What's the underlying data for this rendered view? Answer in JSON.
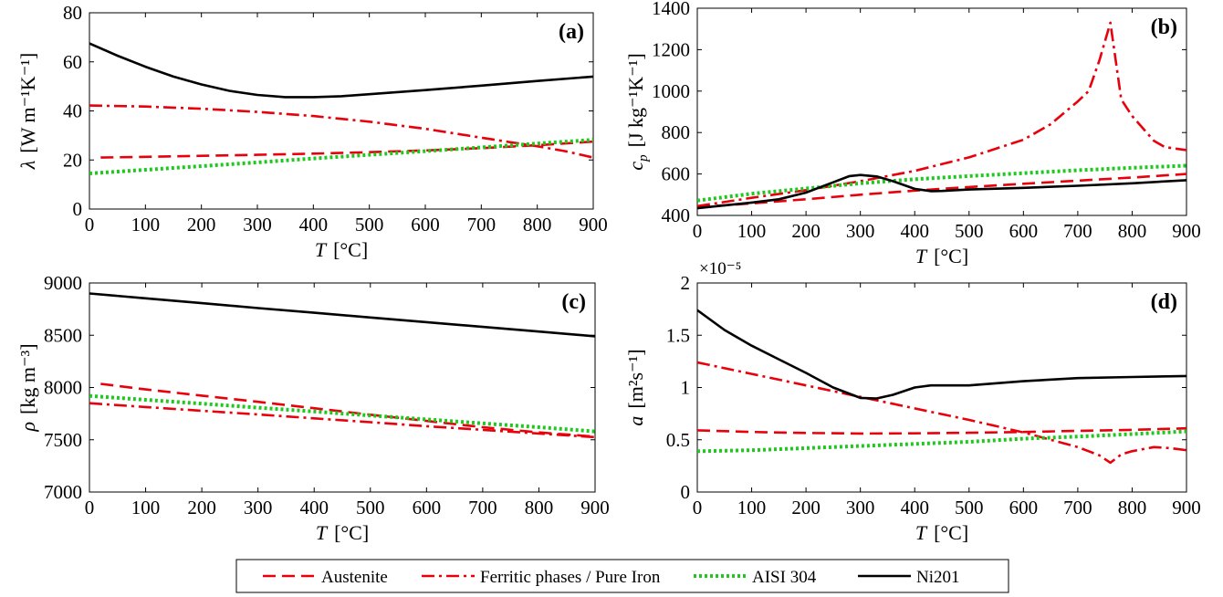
{
  "chart_data": [
    {
      "type": "line",
      "panel_label": "(a)",
      "xlabel_var": "T",
      "xlabel_unit": "[°C]",
      "ylabel_var": "λ",
      "ylabel_unit": "[W m⁻¹K⁻¹]",
      "xlim": [
        0,
        900
      ],
      "ylim": [
        0,
        80
      ],
      "xticks": [
        0,
        100,
        200,
        300,
        400,
        500,
        600,
        700,
        800,
        900
      ],
      "yticks": [
        0,
        20,
        40,
        60,
        80
      ],
      "exponent_label": "",
      "series": [
        {
          "key": "austenite",
          "x": [
            20,
            100,
            200,
            300,
            400,
            500,
            600,
            700,
            800,
            900
          ],
          "y": [
            21,
            21.3,
            21.7,
            22.1,
            22.6,
            23.2,
            23.9,
            24.8,
            26,
            27.5
          ]
        },
        {
          "key": "ferritic",
          "x": [
            0,
            100,
            200,
            300,
            400,
            500,
            600,
            700,
            750,
            800,
            850,
            900
          ],
          "y": [
            42.2,
            41.8,
            40.9,
            39.6,
            37.9,
            35.6,
            32.7,
            29.1,
            27.3,
            25.6,
            23.6,
            21
          ]
        },
        {
          "key": "aisi304",
          "x": [
            0,
            100,
            200,
            300,
            400,
            500,
            600,
            700,
            800,
            900
          ],
          "y": [
            14.5,
            16,
            17.5,
            19,
            20.6,
            22.1,
            23.6,
            25.1,
            26.7,
            28.2
          ]
        },
        {
          "key": "ni201",
          "x": [
            0,
            50,
            100,
            150,
            200,
            250,
            300,
            350,
            400,
            450,
            500,
            600,
            700,
            800,
            900
          ],
          "y": [
            67.5,
            62.5,
            58,
            54,
            50.8,
            48.2,
            46.5,
            45.6,
            45.6,
            46,
            46.8,
            48.5,
            50.3,
            52.2,
            54
          ]
        }
      ]
    },
    {
      "type": "line",
      "panel_label": "(b)",
      "xlabel_var": "T",
      "xlabel_unit": "[°C]",
      "ylabel_var": "cp",
      "ylabel_unit": "[J kg⁻¹K⁻¹]",
      "xlim": [
        0,
        900
      ],
      "ylim": [
        400,
        1400
      ],
      "xticks": [
        0,
        100,
        200,
        300,
        400,
        500,
        600,
        700,
        800,
        900
      ],
      "yticks": [
        400,
        600,
        800,
        1000,
        1200,
        1400
      ],
      "exponent_label": "",
      "series": [
        {
          "key": "austenite",
          "x": [
            0,
            100,
            200,
            300,
            400,
            500,
            600,
            700,
            800,
            900
          ],
          "y": [
            440,
            458,
            478,
            500,
            520,
            537,
            553,
            568,
            583,
            600
          ]
        },
        {
          "key": "ferritic",
          "x": [
            0,
            100,
            200,
            300,
            400,
            500,
            600,
            650,
            700,
            720,
            740,
            760,
            780,
            800,
            840,
            860,
            900
          ],
          "y": [
            445,
            485,
            522,
            565,
            615,
            680,
            765,
            840,
            950,
            1000,
            1150,
            1330,
            960,
            880,
            760,
            730,
            715
          ]
        },
        {
          "key": "aisi304",
          "x": [
            0,
            100,
            200,
            300,
            400,
            500,
            600,
            700,
            800,
            900
          ],
          "y": [
            472,
            505,
            530,
            555,
            575,
            590,
            604,
            618,
            630,
            640
          ]
        },
        {
          "key": "ni201",
          "x": [
            0,
            100,
            150,
            200,
            250,
            280,
            300,
            330,
            360,
            400,
            430,
            450,
            500,
            600,
            700,
            800,
            900
          ],
          "y": [
            435,
            462,
            478,
            510,
            560,
            590,
            595,
            588,
            565,
            528,
            517,
            518,
            525,
            533,
            543,
            555,
            570
          ]
        }
      ]
    },
    {
      "type": "line",
      "panel_label": "(c)",
      "xlabel_var": "T",
      "xlabel_unit": "[°C]",
      "ylabel_var": "ρ",
      "ylabel_unit": "[kg m⁻³]",
      "xlim": [
        0,
        900
      ],
      "ylim": [
        7000,
        9000
      ],
      "xticks": [
        0,
        100,
        200,
        300,
        400,
        500,
        600,
        700,
        800,
        900
      ],
      "yticks": [
        7000,
        7500,
        8000,
        8500,
        9000
      ],
      "exponent_label": "",
      "series": [
        {
          "key": "austenite",
          "x": [
            20,
            100,
            200,
            300,
            400,
            500,
            600,
            700,
            800,
            900
          ],
          "y": [
            8035,
            7982,
            7922,
            7863,
            7802,
            7740,
            7680,
            7620,
            7570,
            7530
          ]
        },
        {
          "key": "ferritic",
          "x": [
            0,
            100,
            200,
            300,
            400,
            500,
            600,
            700,
            800,
            900
          ],
          "y": [
            7850,
            7813,
            7777,
            7742,
            7705,
            7668,
            7630,
            7595,
            7560,
            7525
          ]
        },
        {
          "key": "aisi304",
          "x": [
            0,
            100,
            200,
            300,
            400,
            500,
            600,
            700,
            800,
            900
          ],
          "y": [
            7920,
            7882,
            7845,
            7807,
            7770,
            7732,
            7695,
            7657,
            7620,
            7580
          ]
        },
        {
          "key": "ni201",
          "x": [
            0,
            100,
            200,
            300,
            400,
            500,
            600,
            700,
            800,
            900
          ],
          "y": [
            8900,
            8853,
            8807,
            8760,
            8715,
            8670,
            8625,
            8580,
            8535,
            8490
          ]
        }
      ]
    },
    {
      "type": "line",
      "panel_label": "(d)",
      "xlabel_var": "T",
      "xlabel_unit": "[°C]",
      "ylabel_var": "a",
      "ylabel_unit": "[m²s⁻¹]",
      "xlim": [
        0,
        900
      ],
      "ylim": [
        0,
        2
      ],
      "xticks": [
        0,
        100,
        200,
        300,
        400,
        500,
        600,
        700,
        800,
        900
      ],
      "yticks": [
        0,
        0.5,
        1,
        1.5,
        2
      ],
      "ytick_labels": [
        "0",
        "0.5",
        "1",
        "1.5",
        "2"
      ],
      "exponent_label": "×10⁻⁵",
      "series": [
        {
          "key": "austenite",
          "x": [
            0,
            100,
            200,
            300,
            400,
            500,
            600,
            700,
            800,
            900
          ],
          "y": [
            0.59,
            0.575,
            0.565,
            0.56,
            0.562,
            0.567,
            0.575,
            0.585,
            0.595,
            0.61
          ]
        },
        {
          "key": "ferritic",
          "x": [
            0,
            100,
            200,
            300,
            400,
            500,
            600,
            700,
            720,
            740,
            760,
            780,
            800,
            840,
            870,
            900
          ],
          "y": [
            1.24,
            1.13,
            1.02,
            0.91,
            0.8,
            0.69,
            0.57,
            0.43,
            0.39,
            0.35,
            0.28,
            0.36,
            0.39,
            0.43,
            0.42,
            0.4
          ]
        },
        {
          "key": "aisi304",
          "x": [
            0,
            100,
            200,
            300,
            400,
            500,
            600,
            700,
            800,
            900
          ],
          "y": [
            0.39,
            0.4,
            0.42,
            0.44,
            0.46,
            0.48,
            0.51,
            0.53,
            0.555,
            0.58
          ]
        },
        {
          "key": "ni201",
          "x": [
            0,
            50,
            100,
            150,
            200,
            250,
            300,
            330,
            360,
            400,
            430,
            450,
            500,
            600,
            700,
            800,
            900
          ],
          "y": [
            1.74,
            1.55,
            1.4,
            1.27,
            1.14,
            1.0,
            0.9,
            0.895,
            0.93,
            1.0,
            1.02,
            1.02,
            1.02,
            1.06,
            1.09,
            1.1,
            1.11
          ]
        }
      ]
    }
  ],
  "legend": [
    {
      "key": "austenite",
      "label": "Austenite",
      "color": "#e8000b",
      "dash": "dashed"
    },
    {
      "key": "ferritic",
      "label": "Ferritic phases / Pure Iron",
      "color": "#e8000b",
      "dash": "dashdot"
    },
    {
      "key": "aisi304",
      "label": "AISI 304",
      "color": "#1ec81e",
      "dash": "dotted"
    },
    {
      "key": "ni201",
      "label": "Ni201",
      "color": "#000000",
      "dash": "solid"
    }
  ]
}
